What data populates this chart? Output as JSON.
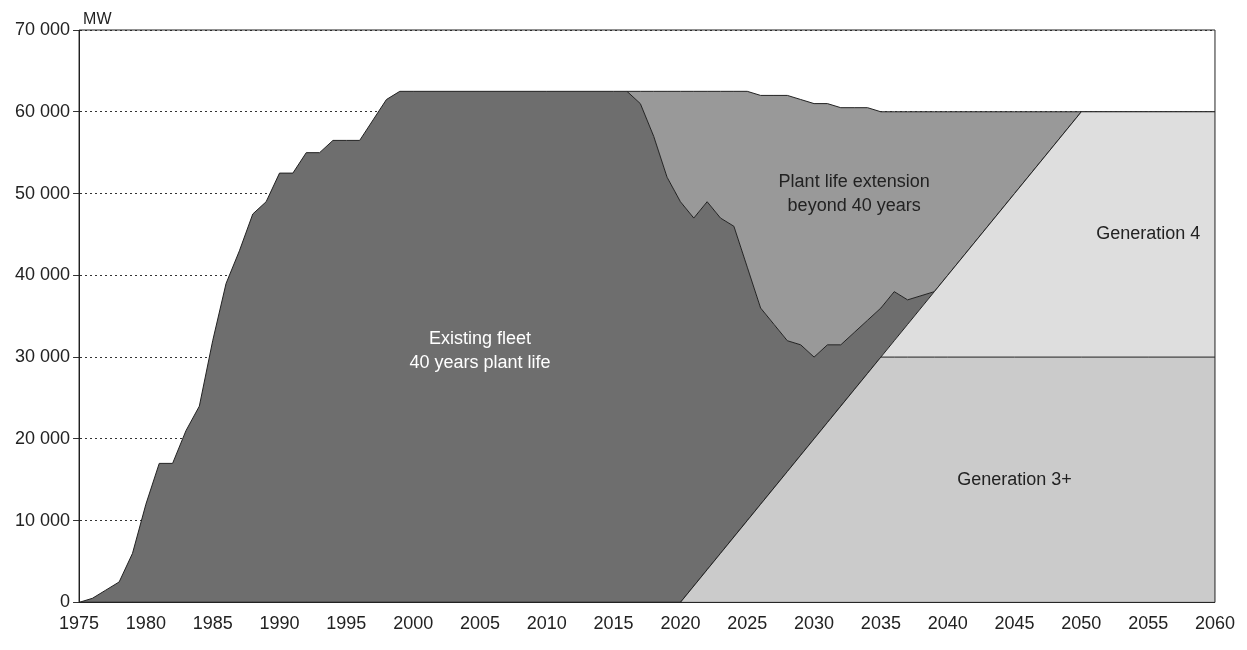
{
  "chart_data": {
    "type": "area",
    "stacked": true,
    "ylabel": "MW",
    "x": [
      1975,
      1976,
      1977,
      1978,
      1979,
      1980,
      1981,
      1982,
      1983,
      1984,
      1985,
      1986,
      1987,
      1988,
      1989,
      1990,
      1991,
      1992,
      1993,
      1994,
      1995,
      1996,
      1997,
      1998,
      1999,
      2000,
      2005,
      2010,
      2015,
      2016,
      2017,
      2018,
      2019,
      2020,
      2021,
      2022,
      2023,
      2024,
      2025,
      2026,
      2027,
      2028,
      2029,
      2030,
      2031,
      2032,
      2033,
      2034,
      2035,
      2036,
      2037,
      2038,
      2039,
      2040,
      2045,
      2050,
      2055,
      2060
    ],
    "series": [
      {
        "name": "Generation 3+",
        "color": "#cbcbcb",
        "values": [
          0,
          0,
          0,
          0,
          0,
          0,
          0,
          0,
          0,
          0,
          0,
          0,
          0,
          0,
          0,
          0,
          0,
          0,
          0,
          0,
          0,
          0,
          0,
          0,
          0,
          0,
          0,
          0,
          0,
          0,
          0,
          0,
          0,
          0,
          2000,
          4000,
          6000,
          8000,
          10000,
          12000,
          14000,
          16000,
          18000,
          20000,
          22000,
          24000,
          26000,
          28000,
          30000,
          30000,
          30000,
          30000,
          30000,
          30000,
          30000,
          30000,
          30000,
          30000
        ]
      },
      {
        "name": "Generation 4",
        "color": "#dedede",
        "values": [
          0,
          0,
          0,
          0,
          0,
          0,
          0,
          0,
          0,
          0,
          0,
          0,
          0,
          0,
          0,
          0,
          0,
          0,
          0,
          0,
          0,
          0,
          0,
          0,
          0,
          0,
          0,
          0,
          0,
          0,
          0,
          0,
          0,
          0,
          0,
          0,
          0,
          0,
          0,
          0,
          0,
          0,
          0,
          0,
          0,
          0,
          0,
          0,
          0,
          2000,
          4000,
          6000,
          8000,
          10000,
          20000,
          30000,
          30000,
          30000
        ]
      },
      {
        "name": "Existing fleet\n40 years plant life",
        "color": "#6e6e6e",
        "values": [
          0,
          500,
          1500,
          2500,
          6000,
          12000,
          17000,
          17000,
          21000,
          24000,
          32000,
          39000,
          43000,
          47500,
          49000,
          52500,
          52500,
          55000,
          55000,
          56500,
          56500,
          56500,
          59000,
          61500,
          62500,
          62500,
          62500,
          62500,
          62500,
          62500,
          61000,
          57000,
          52000,
          49000,
          45000,
          45000,
          41000,
          38000,
          31000,
          24000,
          20000,
          16000,
          13500,
          10000,
          9500,
          7500,
          7000,
          6500,
          6000,
          6000,
          3000,
          1500,
          0,
          0,
          0,
          0,
          0,
          0
        ]
      },
      {
        "name": "Plant life extension\nbeyond 40 years",
        "color": "#999999",
        "values": [
          null,
          null,
          null,
          null,
          null,
          null,
          null,
          null,
          null,
          null,
          null,
          null,
          null,
          null,
          null,
          null,
          null,
          null,
          null,
          null,
          null,
          null,
          null,
          null,
          null,
          null,
          null,
          null,
          null,
          0,
          1500,
          5500,
          10500,
          13500,
          15500,
          13500,
          15500,
          16500,
          21500,
          26000,
          28000,
          30000,
          30000,
          31000,
          29500,
          29000,
          27500,
          26000,
          24000,
          22000,
          23000,
          22500,
          22000,
          20000,
          10000,
          0,
          null,
          null
        ]
      }
    ],
    "xlim": [
      1975,
      2060
    ],
    "xticks": [
      1975,
      1980,
      1985,
      1990,
      1995,
      2000,
      2005,
      2010,
      2015,
      2020,
      2025,
      2030,
      2035,
      2040,
      2045,
      2050,
      2055,
      2060
    ],
    "ylim": [
      0,
      70000
    ],
    "yticks": [
      0,
      {
        "value": 10000,
        "label": "10 000"
      },
      {
        "value": 20000,
        "label": "20 000"
      },
      {
        "value": 30000,
        "label": "30 000"
      },
      {
        "value": 40000,
        "label": "40 000"
      },
      {
        "value": 50000,
        "label": "50 000"
      },
      {
        "value": 60000,
        "label": "60 000"
      },
      {
        "value": 70000,
        "label": "70 000"
      }
    ],
    "grid": "y",
    "line_style": "dotted",
    "legend": false
  }
}
